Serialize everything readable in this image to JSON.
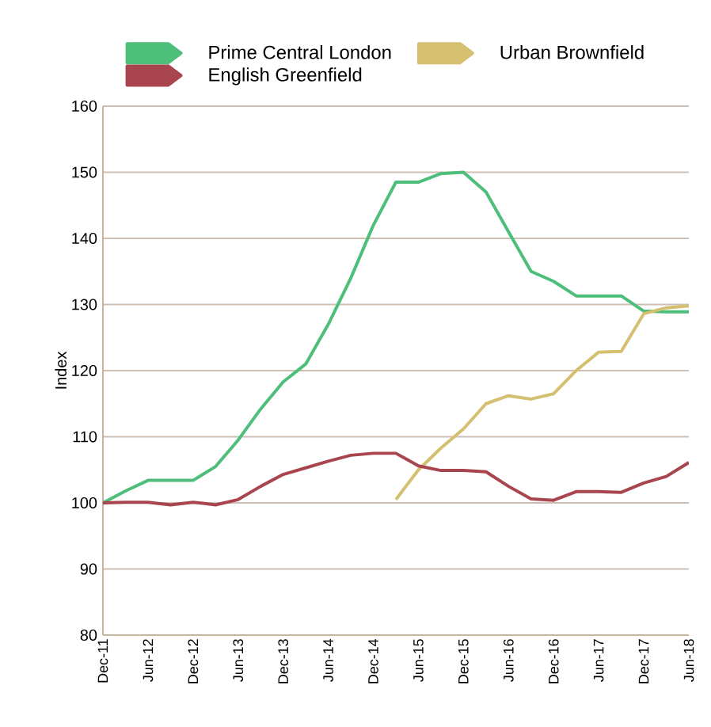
{
  "chart_data": {
    "type": "line",
    "ylabel": "Index",
    "categories": [
      "Dec-11",
      null,
      "Jun-12",
      null,
      "Dec-12",
      null,
      "Jun-13",
      null,
      "Dec-13",
      null,
      "Jun-14",
      null,
      "Dec-14",
      null,
      "Jun-15",
      null,
      "Dec-15",
      null,
      "Jun-16",
      null,
      "Dec-16",
      null,
      "Jun-17",
      null,
      "Dec-17",
      null,
      "Jun-18"
    ],
    "series": [
      {
        "name": "Prime Central London",
        "color": "#4dbf7a",
        "values": [
          100,
          101.8,
          103.4,
          103.4,
          103.4,
          105.5,
          109.5,
          114.2,
          118.3,
          121,
          127,
          134,
          142,
          148.5,
          148.5,
          149.8,
          150,
          147,
          141,
          135,
          133.5,
          131.3,
          131.3,
          131.3,
          129,
          128.9,
          128.9
        ]
      },
      {
        "name": "Urban Brownfield",
        "color": "#d4c070",
        "values": [
          null,
          null,
          null,
          null,
          null,
          null,
          null,
          null,
          null,
          null,
          null,
          null,
          null,
          100.5,
          105,
          108.3,
          111.2,
          115,
          116.2,
          115.7,
          116.5,
          120,
          122.8,
          122.9,
          128.6,
          129.5,
          129.8
        ]
      },
      {
        "name": "English Greenfield",
        "color": "#a8454f",
        "values": [
          100,
          100.1,
          100.1,
          99.7,
          100.1,
          99.7,
          100.5,
          102.5,
          104.3,
          105.3,
          106.3,
          107.2,
          107.5,
          107.5,
          105.6,
          104.9,
          104.9,
          104.7,
          102.5,
          100.6,
          100.4,
          101.7,
          101.7,
          101.6,
          103,
          104,
          106.1
        ]
      }
    ],
    "ylim": [
      80,
      160
    ],
    "yticks": [
      80,
      90,
      100,
      110,
      120,
      130,
      140,
      150,
      160
    ],
    "grid": "y",
    "legend": "top"
  }
}
